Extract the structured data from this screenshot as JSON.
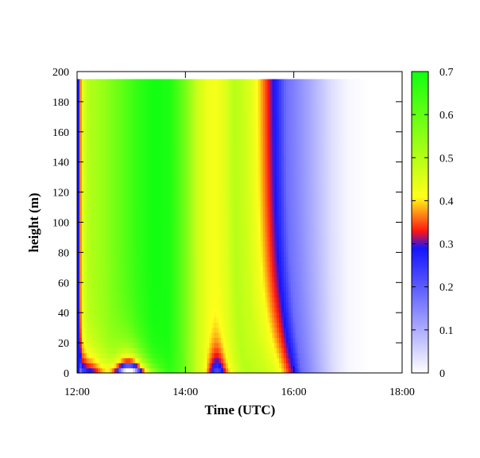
{
  "chart_data": {
    "type": "heatmap",
    "title": "",
    "xlabel": "Time (UTC)",
    "ylabel": "height (m)",
    "x_tick_labels": [
      "12:00",
      "14:00",
      "16:00",
      "18:00"
    ],
    "x_ticks_hours": [
      12,
      14,
      16,
      18
    ],
    "xlim_hours": [
      12,
      18
    ],
    "y_ticks": [
      0,
      20,
      40,
      60,
      80,
      100,
      120,
      140,
      160,
      180,
      200
    ],
    "ylim": [
      0,
      200
    ],
    "data_y_max": 195,
    "colorbar": {
      "ticks": [
        0,
        0.1,
        0.2,
        0.3,
        0.4,
        0.5,
        0.6,
        0.7
      ],
      "tick_labels": [
        "0",
        "0.1",
        "0.2",
        "0.3",
        "0.4",
        "0.5",
        "0.6",
        "0.7"
      ],
      "range": [
        0,
        0.7
      ],
      "stops": [
        {
          "v": 0.0,
          "color": "#ffffff"
        },
        {
          "v": 0.29,
          "color": "#1414ff"
        },
        {
          "v": 0.33,
          "color": "#ff1414"
        },
        {
          "v": 0.41,
          "color": "#ffff1a"
        },
        {
          "v": 0.7,
          "color": "#12ff12"
        }
      ]
    },
    "field_description_profile": {
      "time_hours": [
        12.0,
        12.03,
        12.06,
        12.1,
        12.2,
        12.5,
        12.8,
        13.1,
        13.4,
        13.7,
        13.95,
        14.2,
        14.4,
        14.55,
        14.75,
        14.9,
        15.1,
        15.3,
        15.4,
        15.5,
        15.6,
        15.7,
        15.85,
        16.1,
        16.4,
        16.7,
        17.0,
        17.4,
        18.0
      ],
      "value_aloft": [
        0.29,
        0.27,
        0.36,
        0.44,
        0.5,
        0.54,
        0.6,
        0.66,
        0.7,
        0.69,
        0.6,
        0.48,
        0.43,
        0.42,
        0.45,
        0.5,
        0.47,
        0.42,
        0.38,
        0.34,
        0.3,
        0.26,
        0.18,
        0.14,
        0.09,
        0.04,
        0.01,
        0.0,
        0.0
      ]
    }
  }
}
